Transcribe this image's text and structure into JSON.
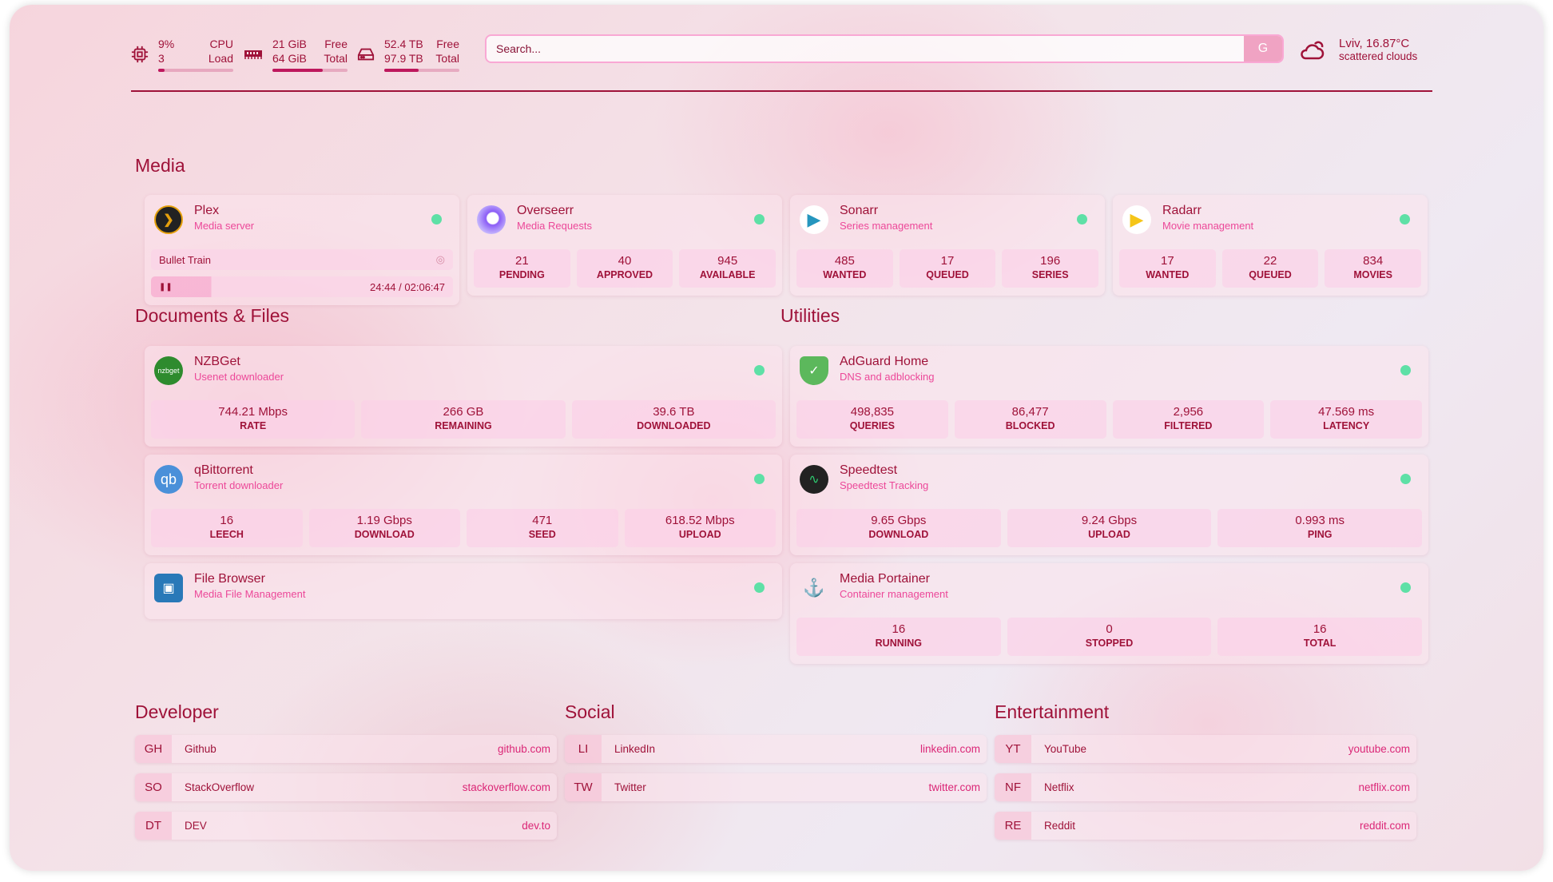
{
  "colors": {
    "primary": "#9f1239",
    "accent": "#ec4899",
    "status_online": "#5ee0a6"
  },
  "header": {
    "cpu": {
      "icon": "cpu-icon",
      "usage": "9%",
      "load": "3",
      "label_usage": "CPU",
      "label_load": "Load",
      "percent": 9
    },
    "memory": {
      "icon": "memory-icon",
      "free": "21 GiB",
      "total": "64 GiB",
      "label_free": "Free",
      "label_total": "Total",
      "percent": 67
    },
    "disk": {
      "icon": "hard-drive-icon",
      "free": "52.4 TB",
      "total": "97.9 TB",
      "label_free": "Free",
      "label_total": "Total",
      "percent": 46
    },
    "search": {
      "placeholder": "Search...",
      "button": "G"
    },
    "weather": {
      "icon": "cloud-sun-icon",
      "location_temp": "Lviv, 16.87°C",
      "condition": "scattered clouds"
    }
  },
  "sections": {
    "media": "Media",
    "documents": "Documents & Files",
    "utilities": "Utilities",
    "developer": "Developer",
    "social": "Social",
    "entertainment": "Entertainment"
  },
  "media": [
    {
      "name": "Plex",
      "desc": "Media server",
      "icon": "plex-icon",
      "now_playing": {
        "title": "Bullet Train",
        "progress": "24:44",
        "duration": "02:06:47",
        "state": "pause-icon"
      }
    },
    {
      "name": "Overseerr",
      "desc": "Media Requests",
      "icon": "overseerr-icon",
      "stats": [
        {
          "value": "21",
          "label": "PENDING"
        },
        {
          "value": "40",
          "label": "APPROVED"
        },
        {
          "value": "945",
          "label": "AVAILABLE"
        }
      ]
    },
    {
      "name": "Sonarr",
      "desc": "Series management",
      "icon": "sonarr-icon",
      "stats": [
        {
          "value": "485",
          "label": "WANTED"
        },
        {
          "value": "17",
          "label": "QUEUED"
        },
        {
          "value": "196",
          "label": "SERIES"
        }
      ]
    },
    {
      "name": "Radarr",
      "desc": "Movie management",
      "icon": "radarr-icon",
      "stats": [
        {
          "value": "17",
          "label": "WANTED"
        },
        {
          "value": "22",
          "label": "QUEUED"
        },
        {
          "value": "834",
          "label": "MOVIES"
        }
      ]
    }
  ],
  "documents": [
    {
      "name": "NZBGet",
      "desc": "Usenet downloader",
      "icon": "nzbget-icon",
      "icon_text": "nzbget",
      "stats": [
        {
          "value": "744.21 Mbps",
          "label": "RATE"
        },
        {
          "value": "266 GB",
          "label": "REMAINING"
        },
        {
          "value": "39.6 TB",
          "label": "DOWNLOADED"
        }
      ]
    },
    {
      "name": "qBittorrent",
      "desc": "Torrent downloader",
      "icon": "qbittorrent-icon",
      "icon_text": "qb",
      "stats": [
        {
          "value": "16",
          "label": "LEECH"
        },
        {
          "value": "1.19 Gbps",
          "label": "DOWNLOAD"
        },
        {
          "value": "471",
          "label": "SEED"
        },
        {
          "value": "618.52 Mbps",
          "label": "UPLOAD"
        }
      ]
    },
    {
      "name": "File Browser",
      "desc": "Media File Management",
      "icon": "file-browser-icon"
    }
  ],
  "utilities": [
    {
      "name": "AdGuard Home",
      "desc": "DNS and adblocking",
      "icon": "adguard-shield-icon",
      "stats": [
        {
          "value": "498,835",
          "label": "QUERIES"
        },
        {
          "value": "86,477",
          "label": "BLOCKED"
        },
        {
          "value": "2,956",
          "label": "FILTERED"
        },
        {
          "value": "47.569 ms",
          "label": "LATENCY"
        }
      ]
    },
    {
      "name": "Speedtest",
      "desc": "Speedtest Tracking",
      "icon": "speedtest-icon",
      "stats": [
        {
          "value": "9.65 Gbps",
          "label": "DOWNLOAD"
        },
        {
          "value": "9.24 Gbps",
          "label": "UPLOAD"
        },
        {
          "value": "0.993 ms",
          "label": "PING"
        }
      ]
    },
    {
      "name": "Media Portainer",
      "desc": "Container management",
      "icon": "portainer-icon",
      "stats": [
        {
          "value": "16",
          "label": "RUNNING"
        },
        {
          "value": "0",
          "label": "STOPPED"
        },
        {
          "value": "16",
          "label": "TOTAL"
        }
      ]
    }
  ],
  "bookmarks": {
    "developer": [
      {
        "abbr": "GH",
        "name": "Github",
        "url": "github.com"
      },
      {
        "abbr": "SO",
        "name": "StackOverflow",
        "url": "stackoverflow.com"
      },
      {
        "abbr": "DT",
        "name": "DEV",
        "url": "dev.to"
      }
    ],
    "social": [
      {
        "abbr": "LI",
        "name": "LinkedIn",
        "url": "linkedin.com"
      },
      {
        "abbr": "TW",
        "name": "Twitter",
        "url": "twitter.com"
      }
    ],
    "entertainment": [
      {
        "abbr": "YT",
        "name": "YouTube",
        "url": "youtube.com"
      },
      {
        "abbr": "NF",
        "name": "Netflix",
        "url": "netflix.com"
      },
      {
        "abbr": "RE",
        "name": "Reddit",
        "url": "reddit.com"
      }
    ]
  }
}
